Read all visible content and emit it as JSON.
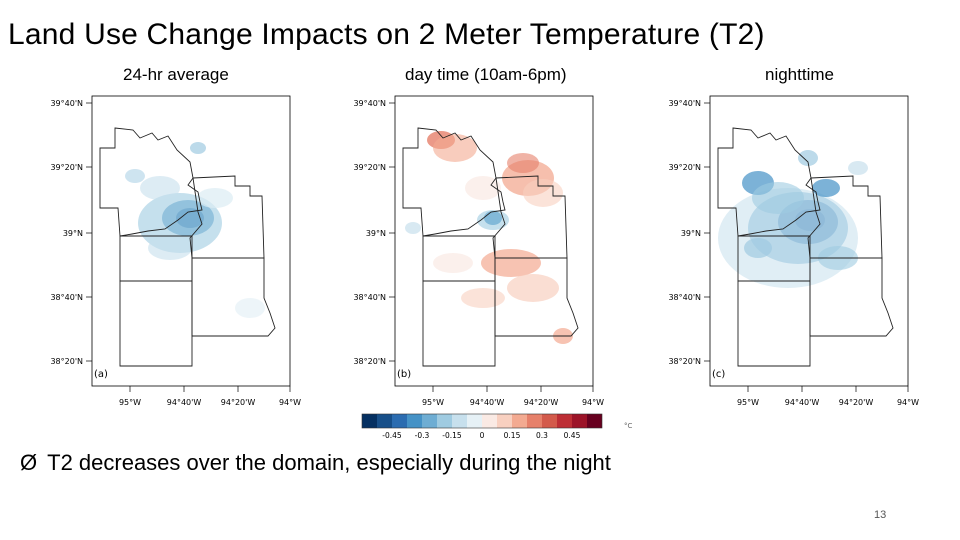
{
  "slide": {
    "title": "Land Use Change Impacts on 2 Meter Temperature (T2)",
    "bullet_marker": "Ø",
    "bullet": "T2 decreases over the domain, especially during the night",
    "page_number": "13"
  },
  "panels": [
    {
      "caption": "24-hr average",
      "letter": "(a)",
      "mode": "cool"
    },
    {
      "caption": "day time (10am-6pm)",
      "letter": "(b)",
      "mode": "warm"
    },
    {
      "caption": "nighttime",
      "letter": "(c)",
      "mode": "coolstrong"
    }
  ],
  "axes": {
    "lat_labels": [
      "39°40'N",
      "39°20'N",
      "39°N",
      "38°40'N",
      "38°20'N"
    ],
    "lon_labels": [
      "95°W",
      "94°40'W",
      "94°20'W",
      "94°W"
    ]
  },
  "colorbar": {
    "tick_labels": [
      "-0.45",
      "-0.3",
      "-0.15",
      "0",
      "0.15",
      "0.3",
      "0.45"
    ],
    "unit": "°C",
    "colors": [
      "#053061",
      "#174f89",
      "#2b6cb0",
      "#4592c6",
      "#6eadd3",
      "#9fcbe1",
      "#c7e0ed",
      "#e6f1f6",
      "#faeae4",
      "#f8d0c0",
      "#f3aa91",
      "#e6806a",
      "#d35a4b",
      "#bd2e35",
      "#9c1328",
      "#67001f"
    ]
  }
}
